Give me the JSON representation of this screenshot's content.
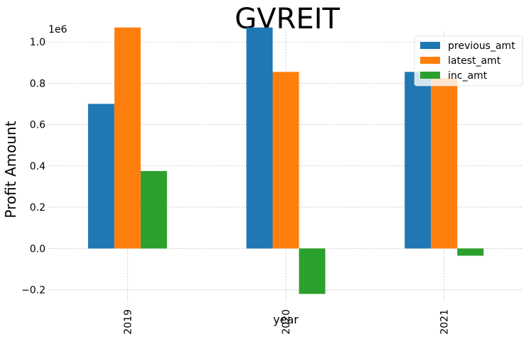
{
  "chart_data": {
    "type": "bar",
    "title": "GVREIT",
    "xlabel": "year",
    "ylabel": "Profit Amount",
    "y_offset_label": "1e6",
    "categories": [
      "2019",
      "2020",
      "2021"
    ],
    "series": [
      {
        "name": "previous_amt",
        "color": "#1f77b4",
        "values": [
          0.7,
          1.07,
          0.855
        ]
      },
      {
        "name": "latest_amt",
        "color": "#ff7f0e",
        "values": [
          1.07,
          0.855,
          0.825
        ]
      },
      {
        "name": "inc_amt",
        "color": "#2ca02c",
        "values": [
          0.375,
          -0.22,
          -0.035
        ]
      }
    ],
    "ylim": [
      -0.26,
      1.1
    ],
    "yticks": [
      -0.2,
      0.0,
      0.2,
      0.4,
      0.6,
      0.8,
      1.0
    ],
    "ytick_labels": [
      "−0.2",
      "0.0",
      "0.2",
      "0.4",
      "0.6",
      "0.8",
      "1.0"
    ],
    "grid": true,
    "legend_position": "top-right"
  }
}
